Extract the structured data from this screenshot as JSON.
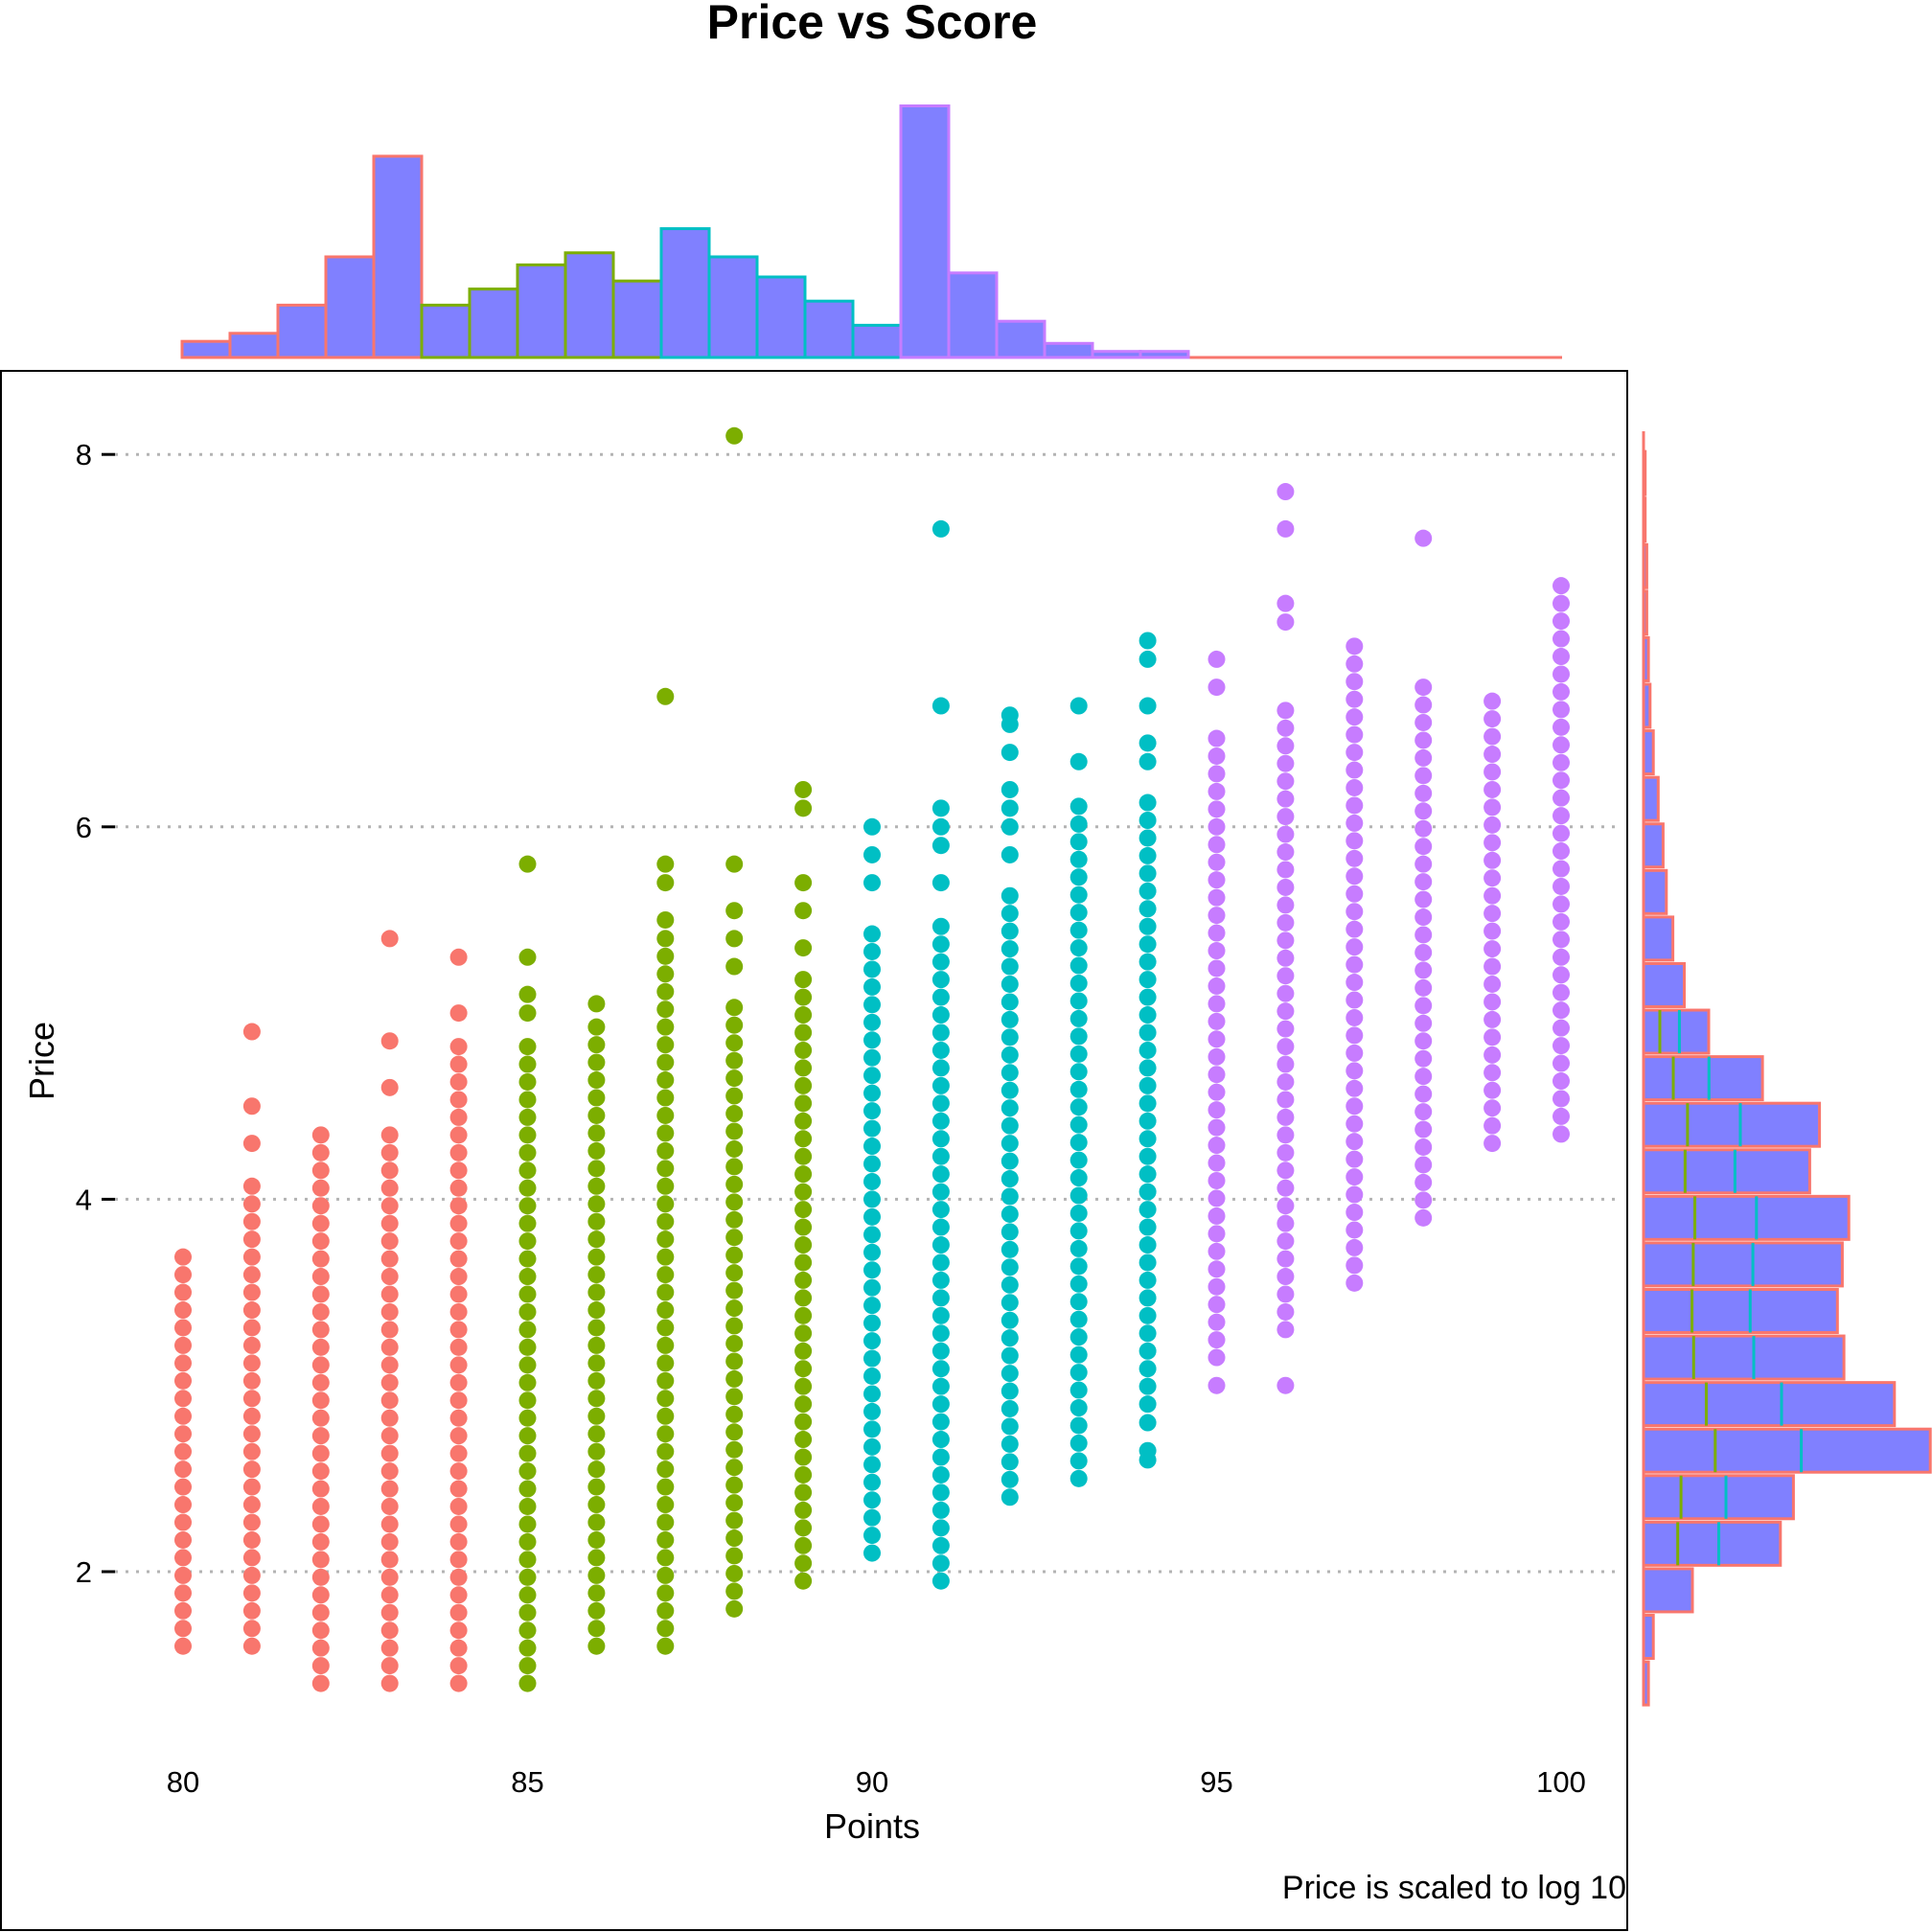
{
  "chart_data": {
    "type": "scatter",
    "title": "Price vs Score",
    "xlabel": "Points",
    "ylabel": "Price",
    "caption": "Price is scaled to log 10",
    "xlim": [
      78.7,
      101.2
    ],
    "ylim": [
      1.0,
      8.4
    ],
    "xticks": [
      {
        "value": 80,
        "label": "80"
      },
      {
        "value": 85,
        "label": "85"
      },
      {
        "value": 90,
        "label": "90"
      },
      {
        "value": 95,
        "label": "95"
      },
      {
        "value": 100,
        "label": "100"
      }
    ],
    "yticks": [
      {
        "value": 2,
        "label": "2"
      },
      {
        "value": 4,
        "label": "4"
      },
      {
        "value": 6,
        "label": "6"
      },
      {
        "value": 8,
        "label": "8"
      }
    ],
    "grid": "horizontal dotted",
    "legend": "none",
    "colors": {
      "group_80_84": "#F8766D",
      "group_85_89": "#7CAE00",
      "group_90_94": "#00BFC4",
      "group_95_100": "#C77CFF",
      "histogram_fill": "#8080FF"
    },
    "series": [
      {
        "x": 80,
        "ymin": 1.6,
        "ymax": 3.7,
        "outliers": [],
        "group": 0
      },
      {
        "x": 81,
        "ymin": 1.6,
        "ymax": 4.1,
        "outliers": [
          4.3,
          4.5,
          4.9
        ],
        "group": 0
      },
      {
        "x": 82,
        "ymin": 1.4,
        "ymax": 4.4,
        "outliers": [],
        "group": 0
      },
      {
        "x": 83,
        "ymin": 1.4,
        "ymax": 4.4,
        "outliers": [
          4.6,
          4.85,
          5.4
        ],
        "group": 0
      },
      {
        "x": 84,
        "ymin": 1.4,
        "ymax": 4.9,
        "outliers": [
          5.0,
          5.3
        ],
        "group": 0
      },
      {
        "x": 85,
        "ymin": 1.4,
        "ymax": 4.85,
        "outliers": [
          5.0,
          5.1,
          5.3,
          5.8
        ],
        "group": 1
      },
      {
        "x": 86,
        "ymin": 1.6,
        "ymax": 4.95,
        "outliers": [
          5.05
        ],
        "group": 1
      },
      {
        "x": 87,
        "ymin": 1.6,
        "ymax": 5.4,
        "outliers": [
          5.5,
          5.7,
          5.8,
          6.7
        ],
        "group": 1
      },
      {
        "x": 88,
        "ymin": 1.8,
        "ymax": 5.1,
        "outliers": [
          5.25,
          5.4,
          5.55,
          5.8,
          8.1
        ],
        "group": 1
      },
      {
        "x": 89,
        "ymin": 1.95,
        "ymax": 5.2,
        "outliers": [
          5.35,
          5.55,
          5.7,
          6.1,
          6.2
        ],
        "group": 1
      },
      {
        "x": 90,
        "ymin": 2.1,
        "ymax": 5.5,
        "outliers": [
          5.7,
          5.85,
          6.0
        ],
        "group": 2
      },
      {
        "x": 91,
        "ymin": 1.95,
        "ymax": 5.55,
        "outliers": [
          5.7,
          5.9,
          6.0,
          6.1,
          6.65,
          7.6
        ],
        "group": 2
      },
      {
        "x": 92,
        "ymin": 2.4,
        "ymax": 5.7,
        "outliers": [
          5.85,
          6.0,
          6.1,
          6.2,
          6.4,
          6.55,
          6.6
        ],
        "group": 2
      },
      {
        "x": 93,
        "ymin": 2.5,
        "ymax": 6.2,
        "outliers": [
          6.35,
          6.65
        ],
        "group": 2
      },
      {
        "x": 94,
        "ymin": 2.9,
        "ymax": 6.15,
        "outliers": [
          2.6,
          2.65,
          2.8,
          6.35,
          6.45,
          6.65,
          6.9,
          7.0
        ],
        "group": 2
      },
      {
        "x": 95,
        "ymin": 3.15,
        "ymax": 6.55,
        "outliers": [
          3.0,
          6.75,
          6.9
        ],
        "group": 3
      },
      {
        "x": 96,
        "ymin": 3.3,
        "ymax": 6.7,
        "outliers": [
          3.0,
          7.1,
          7.2,
          7.6,
          7.8
        ],
        "group": 3
      },
      {
        "x": 97,
        "ymin": 3.55,
        "ymax": 7.0,
        "outliers": [],
        "group": 3
      },
      {
        "x": 98,
        "ymin": 3.9,
        "ymax": 6.8,
        "outliers": [
          7.55
        ],
        "group": 3
      },
      {
        "x": 99,
        "ymin": 4.3,
        "ymax": 6.75,
        "outliers": [],
        "group": 3
      },
      {
        "x": 100,
        "ymin": 4.35,
        "ymax": 7.3,
        "outliers": [],
        "group": 3
      }
    ],
    "top_histogram": {
      "bins": [
        {
          "x": 80,
          "count": 0.08
        },
        {
          "x": 81,
          "count": 0.12
        },
        {
          "x": 82,
          "count": 0.26
        },
        {
          "x": 83,
          "count": 0.5
        },
        {
          "x": 84,
          "count": 1.0
        },
        {
          "x": 85,
          "count": 0.26
        },
        {
          "x": 86,
          "count": 0.34
        },
        {
          "x": 87,
          "count": 0.46
        },
        {
          "x": 88,
          "count": 0.52
        },
        {
          "x": 89,
          "count": 0.38
        },
        {
          "x": 90,
          "count": 0.64
        },
        {
          "x": 91,
          "count": 0.5
        },
        {
          "x": 92,
          "count": 0.4
        },
        {
          "x": 93,
          "count": 0.28
        },
        {
          "x": 94,
          "count": 0.16
        },
        {
          "x": 95,
          "count": 1.25
        },
        {
          "x": 96,
          "count": 0.42
        },
        {
          "x": 97,
          "count": 0.18
        },
        {
          "x": 98,
          "count": 0.07
        },
        {
          "x": 99,
          "count": 0.03
        },
        {
          "x": 100,
          "count": 0.03
        }
      ]
    },
    "right_histogram": {
      "bins": [
        {
          "y": 1.4,
          "count": 0.03
        },
        {
          "y": 1.65,
          "count": 0.06
        },
        {
          "y": 1.9,
          "count": 0.3
        },
        {
          "y": 2.15,
          "count": 0.84
        },
        {
          "y": 2.4,
          "count": 0.92
        },
        {
          "y": 2.65,
          "count": 1.76
        },
        {
          "y": 2.9,
          "count": 1.54
        },
        {
          "y": 3.15,
          "count": 1.23
        },
        {
          "y": 3.4,
          "count": 1.19
        },
        {
          "y": 3.65,
          "count": 1.22
        },
        {
          "y": 3.9,
          "count": 1.26
        },
        {
          "y": 4.15,
          "count": 1.02
        },
        {
          "y": 4.4,
          "count": 1.08
        },
        {
          "y": 4.65,
          "count": 0.73
        },
        {
          "y": 4.9,
          "count": 0.4
        },
        {
          "y": 5.15,
          "count": 0.25
        },
        {
          "y": 5.4,
          "count": 0.18
        },
        {
          "y": 5.65,
          "count": 0.14
        },
        {
          "y": 5.9,
          "count": 0.12
        },
        {
          "y": 6.15,
          "count": 0.09
        },
        {
          "y": 6.4,
          "count": 0.06
        },
        {
          "y": 6.65,
          "count": 0.04
        },
        {
          "y": 6.9,
          "count": 0.03
        },
        {
          "y": 7.15,
          "count": 0.02
        },
        {
          "y": 7.4,
          "count": 0.02
        },
        {
          "y": 7.65,
          "count": 0.01
        },
        {
          "y": 7.9,
          "count": 0.01
        }
      ]
    }
  }
}
